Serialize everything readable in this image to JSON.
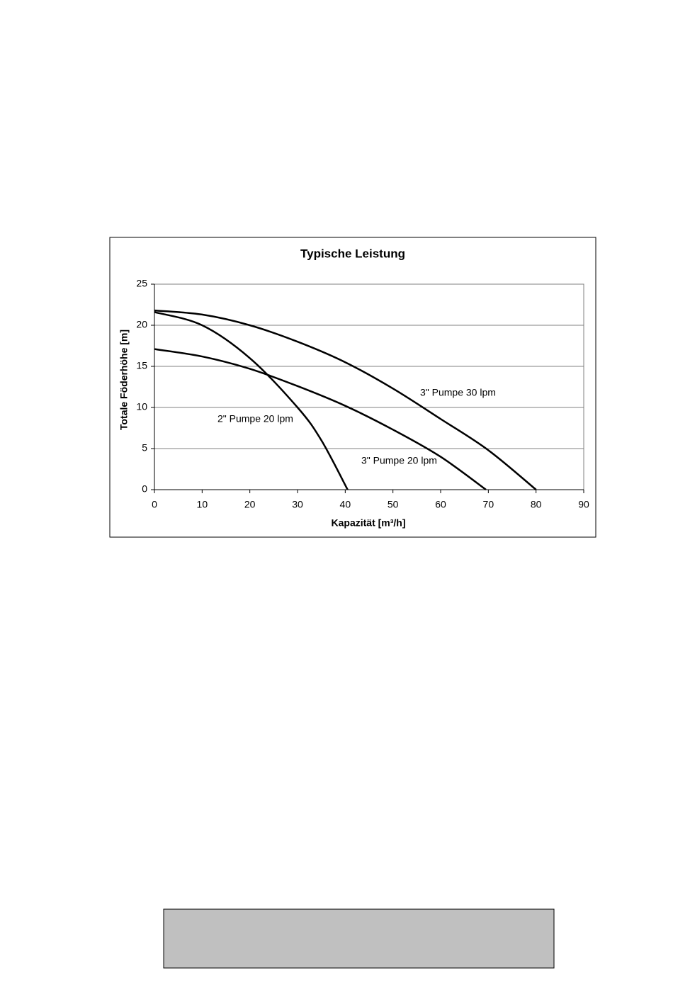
{
  "chart_data": {
    "type": "line",
    "title": "Typische Leistung",
    "x_label": "Kapazität [m³/h]",
    "y_label": "Totale Föderhöhe [m]",
    "xlim": [
      0,
      90
    ],
    "xticks": [
      0,
      10,
      20,
      30,
      40,
      50,
      60,
      70,
      80,
      90
    ],
    "ylim": [
      0,
      25
    ],
    "yticks": [
      0,
      5,
      10,
      15,
      20,
      25
    ],
    "grid": true,
    "series": [
      {
        "name": "3\" Pumpe 30 lpm",
        "color": "#000000",
        "x": [
          0,
          10,
          20,
          30,
          40,
          50,
          60,
          70,
          80
        ],
        "values": [
          21.8,
          21.3,
          20.0,
          18.0,
          15.5,
          12.3,
          8.6,
          4.8,
          0
        ]
      },
      {
        "name": "2\" Pumpe 20 lpm",
        "color": "#000000",
        "x": [
          0,
          10,
          20,
          30,
          35,
          40.5
        ],
        "values": [
          21.6,
          20.0,
          16.0,
          10.0,
          6.0,
          0
        ]
      },
      {
        "name": "3\" Pumpe 20 lpm",
        "color": "#000000",
        "x": [
          0,
          10,
          20,
          30,
          40,
          50,
          60,
          69.5
        ],
        "values": [
          17.1,
          16.2,
          14.7,
          12.6,
          10.2,
          7.3,
          4.0,
          0
        ]
      }
    ]
  }
}
